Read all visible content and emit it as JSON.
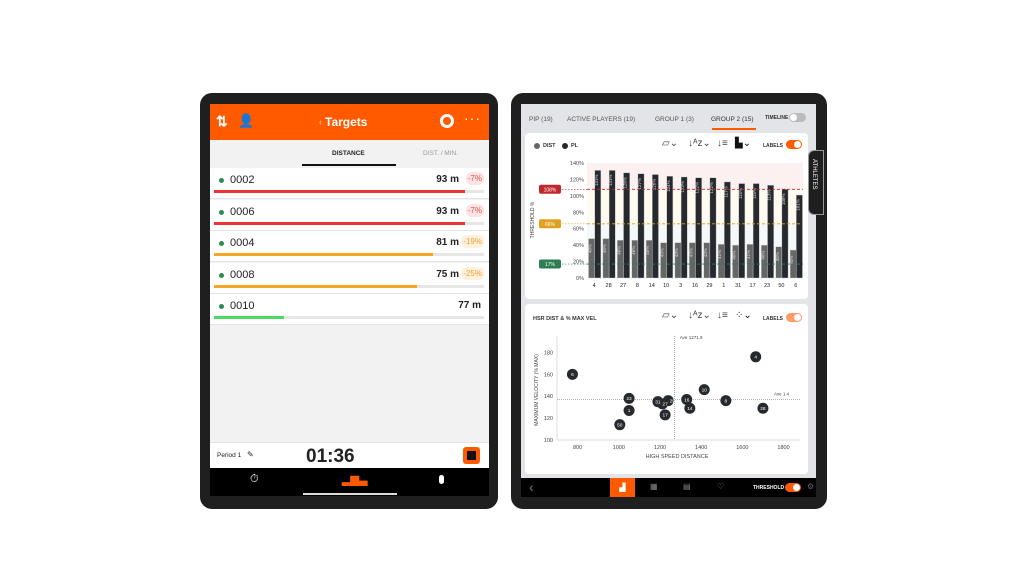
{
  "left": {
    "header": {
      "title": "Targets",
      "back": "‹"
    },
    "tabs": [
      {
        "label": "DISTANCE",
        "active": true
      },
      {
        "label": "DIST. / MIN.",
        "active": false
      }
    ],
    "rows": [
      {
        "id": "0002",
        "value": "93 m",
        "delta": "-7%",
        "progress": 0.93,
        "color": "#ee3333",
        "badge_bg": "#fde3e3",
        "badge_fg": "#e05555"
      },
      {
        "id": "0006",
        "value": "93 m",
        "delta": "-7%",
        "progress": 0.93,
        "color": "#ee3333",
        "badge_bg": "#fde3e3",
        "badge_fg": "#e05555"
      },
      {
        "id": "0004",
        "value": "81 m",
        "delta": "-19%",
        "progress": 0.81,
        "color": "#f5a623",
        "badge_bg": "#fdf1dc",
        "badge_fg": "#e8a23a"
      },
      {
        "id": "0008",
        "value": "75 m",
        "delta": "-25%",
        "progress": 0.75,
        "color": "#f5a623",
        "badge_bg": "#fdf1dc",
        "badge_fg": "#e8a23a"
      },
      {
        "id": "0010",
        "value": "77 m",
        "delta": "",
        "progress": 0.26,
        "color": "#4cd964",
        "badge_bg": "",
        "badge_fg": ""
      }
    ],
    "footer": {
      "period": "Period 1",
      "timer": "01:36"
    },
    "icons": [
      "sort-icon",
      "user-add-icon",
      "target-icon",
      "more-icon",
      "stopwatch-icon",
      "bar-chart-icon",
      "device-icon",
      "pencil-icon",
      "stop-icon"
    ]
  },
  "right": {
    "tabs": [
      {
        "label": "PIP (19)"
      },
      {
        "label": "ACTIVE PLAYERS (19)"
      },
      {
        "label": "GROUP 1 (3)"
      },
      {
        "label": "GROUP 2 (15)",
        "active": true
      }
    ],
    "timeline_label": "TIMELINE",
    "side_tab": "ATHLETES",
    "labels_toggle": "LABELS",
    "threshold_label": "THRESHOLD",
    "accent": "#ff5a00"
  },
  "chart_data": [
    {
      "type": "bar",
      "legend": [
        "DIST",
        "PL"
      ],
      "ylabel": "THRESHOLD %",
      "ylim": [
        0,
        140
      ],
      "yticks": [
        "0%",
        "20%",
        "40%",
        "60%",
        "80%",
        "100%",
        "120%",
        "140%"
      ],
      "categories": [
        "4",
        "28",
        "27",
        "8",
        "14",
        "10",
        "3",
        "16",
        "29",
        "1",
        "31",
        "17",
        "23",
        "50",
        "6"
      ],
      "series": [
        {
          "name": "DIST",
          "color": "#666666",
          "values": [
            48,
            48,
            46,
            46,
            46,
            43,
            43,
            43,
            43,
            41,
            40,
            41,
            40,
            38,
            34
          ]
        },
        {
          "name": "PL",
          "color": "#262a2e",
          "values": [
            131,
            131,
            128,
            127,
            126,
            124,
            123,
            122,
            122,
            117,
            115,
            115,
            113,
            108,
            101
          ]
        }
      ],
      "thresholds": [
        {
          "label": "108%",
          "value": 108,
          "color": "#c0282d"
        },
        {
          "label": "66%",
          "value": 66,
          "color": "#e0a020"
        },
        {
          "label": "17%",
          "value": 17,
          "color": "#2e7d52"
        }
      ]
    },
    {
      "type": "scatter",
      "title": "HSR DIST & % MAX VEL",
      "xlabel": "HIGH SPEED DISTANCE",
      "ylabel": "MAXIMUM VELOCITY (% MAX)",
      "xlim": [
        700,
        1880
      ],
      "ylim": [
        100,
        195
      ],
      "xticks": [
        "800",
        "1000",
        "1200",
        "1400",
        "1600",
        "1800"
      ],
      "yticks": [
        "100",
        "120",
        "140",
        "160",
        "180"
      ],
      "ave_x": {
        "label": "Ave 1271.9",
        "value": 1271.9
      },
      "ave_y": {
        "label": "Ave 1.4",
        "value": 137
      },
      "points": [
        {
          "label": "6",
          "x": 775,
          "y": 160
        },
        {
          "label": "23",
          "x": 1050,
          "y": 138
        },
        {
          "label": "1",
          "x": 1050,
          "y": 127
        },
        {
          "label": "50",
          "x": 1005,
          "y": 114
        },
        {
          "label": "31",
          "x": 1190,
          "y": 135
        },
        {
          "label": "27",
          "x": 1212,
          "y": 133
        },
        {
          "label": "29",
          "x": 1240,
          "y": 136
        },
        {
          "label": "17",
          "x": 1225,
          "y": 123
        },
        {
          "label": "16",
          "x": 1330,
          "y": 137
        },
        {
          "label": "14",
          "x": 1345,
          "y": 129
        },
        {
          "label": "10",
          "x": 1415,
          "y": 146
        },
        {
          "label": "8",
          "x": 1520,
          "y": 136
        },
        {
          "label": "4",
          "x": 1665,
          "y": 176
        },
        {
          "label": "28",
          "x": 1700,
          "y": 129
        }
      ]
    }
  ]
}
